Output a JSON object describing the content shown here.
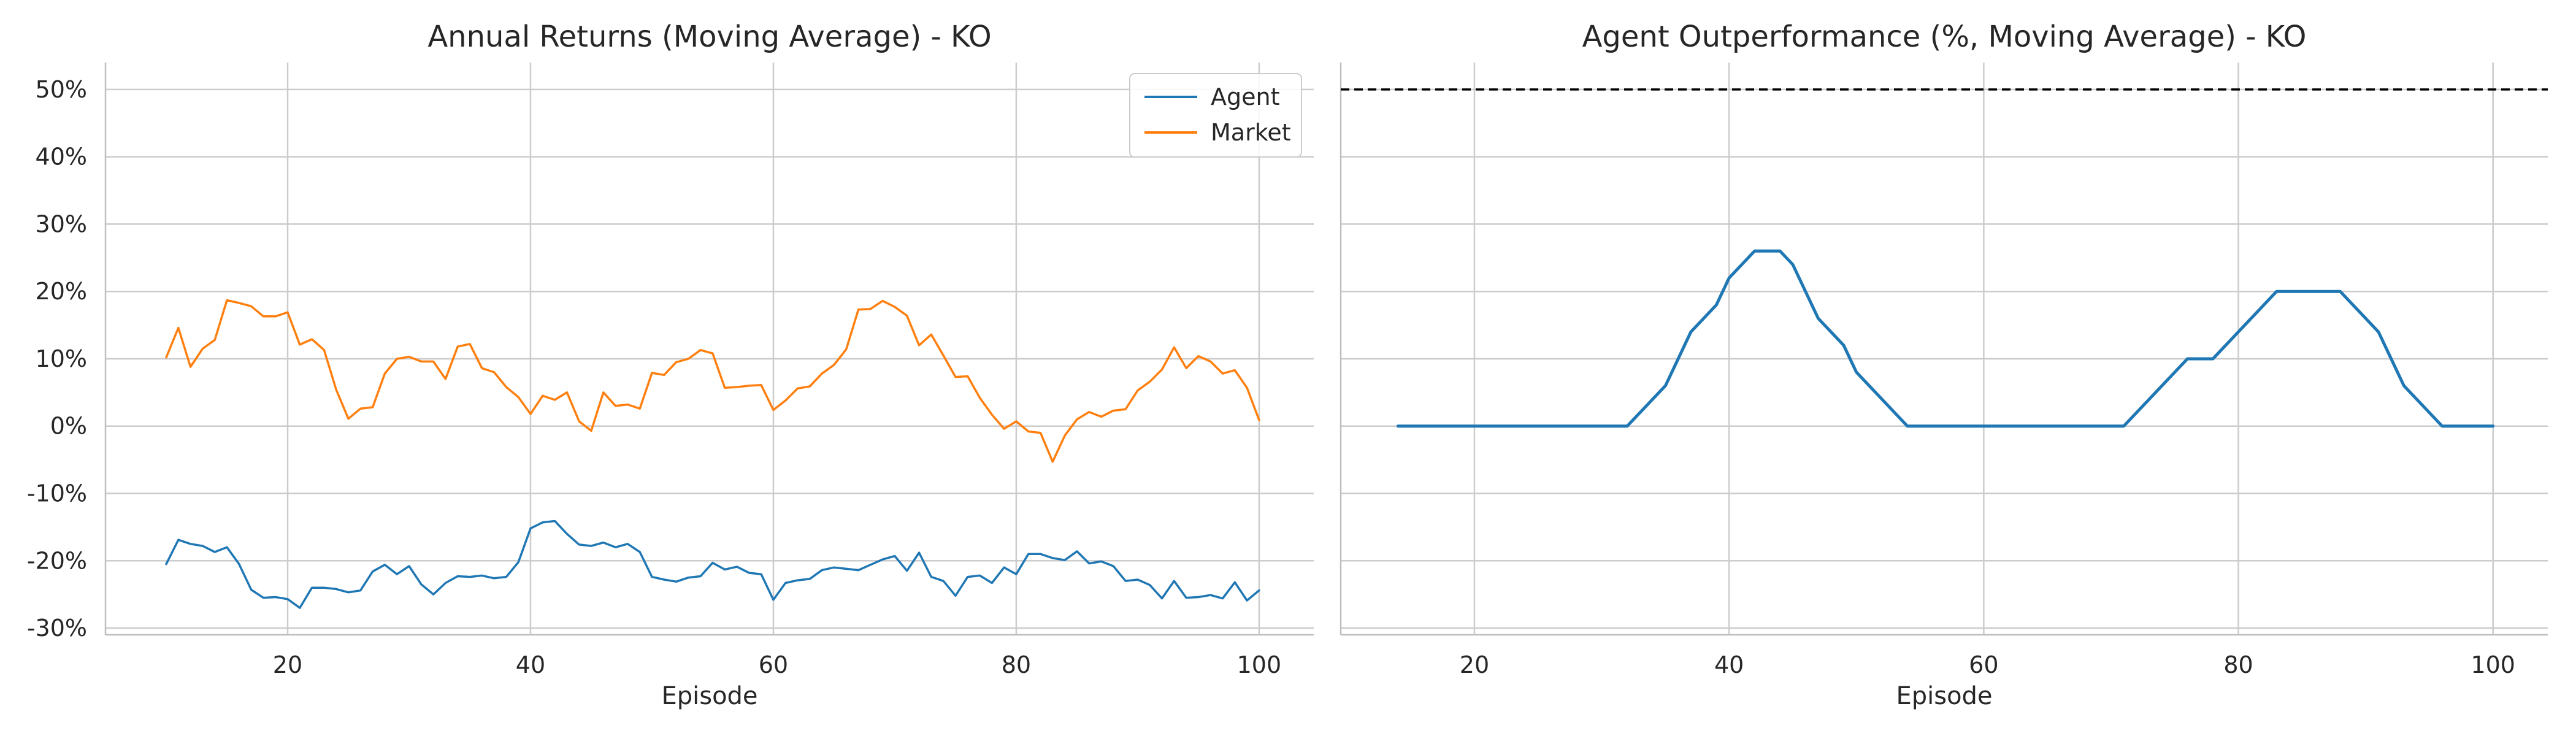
{
  "colors": {
    "agent": "#1f77b4",
    "market": "#ff7f0e",
    "reference": "#000000",
    "grid": "#cccccc"
  },
  "chart_data": [
    {
      "type": "line",
      "title": "Annual Returns (Moving Average) - KO",
      "xlabel": "Episode",
      "ylabel": "",
      "xlim": [
        5,
        104.5
      ],
      "ylim": [
        -31,
        54
      ],
      "xticks": [
        20,
        40,
        60,
        80,
        100
      ],
      "xtick_labels": [
        "20",
        "40",
        "60",
        "80",
        "100"
      ],
      "yticks": [
        -30,
        -20,
        -10,
        0,
        10,
        20,
        30,
        40,
        50
      ],
      "ytick_labels": [
        "-30%",
        "-20%",
        "-10%",
        "0%",
        "10%",
        "20%",
        "30%",
        "40%",
        "50%"
      ],
      "grid": true,
      "legend": "top-right",
      "x_start": 10,
      "series": [
        {
          "name": "Agent",
          "color": "#1f77b4",
          "values": [
            -20.5,
            -16.9,
            -17.5,
            -17.8,
            -18.7,
            -18.0,
            -20.5,
            -24.3,
            -25.5,
            -25.4,
            -25.7,
            -27.0,
            -24.0,
            -24.0,
            -24.2,
            -24.7,
            -24.4,
            -21.6,
            -20.6,
            -22.0,
            -20.8,
            -23.5,
            -25.0,
            -23.3,
            -22.3,
            -22.4,
            -22.2,
            -22.6,
            -22.4,
            -20.2,
            -15.2,
            -14.3,
            -14.1,
            -16.0,
            -17.6,
            -17.8,
            -17.3,
            -18.0,
            -17.5,
            -18.7,
            -22.4,
            -22.8,
            -23.1,
            -22.5,
            -22.3,
            -20.3,
            -21.3,
            -20.9,
            -21.8,
            -22.0,
            -25.8,
            -23.3,
            -22.9,
            -22.7,
            -21.4,
            -21.0,
            -21.2,
            -21.4,
            -20.6,
            -19.8,
            -19.3,
            -21.5,
            -18.8,
            -22.4,
            -23.0,
            -25.2,
            -22.4,
            -22.2,
            -23.3,
            -21.0,
            -22.0,
            -19.0,
            -19.0,
            -19.6,
            -19.9,
            -18.6,
            -20.4,
            -20.1,
            -20.8,
            -23.0,
            -22.8,
            -23.6,
            -25.6,
            -23.0,
            -25.5,
            -25.4,
            -25.1,
            -25.6,
            -23.2,
            -25.9,
            -24.4
          ]
        },
        {
          "name": "Market",
          "color": "#ff7f0e",
          "values": [
            10.2,
            14.6,
            8.8,
            11.5,
            12.8,
            18.7,
            18.3,
            17.8,
            16.3,
            16.3,
            16.9,
            12.1,
            12.9,
            11.3,
            5.4,
            1.1,
            2.6,
            2.8,
            7.8,
            10.0,
            10.3,
            9.6,
            9.6,
            7.0,
            11.8,
            12.2,
            8.6,
            8.0,
            5.8,
            4.3,
            1.8,
            4.5,
            3.9,
            5.0,
            0.7,
            -0.7,
            5.0,
            3.0,
            3.2,
            2.6,
            7.9,
            7.6,
            9.5,
            10.0,
            11.3,
            10.8,
            5.7,
            5.8,
            6.0,
            6.1,
            2.4,
            3.8,
            5.6,
            5.9,
            7.8,
            9.1,
            11.4,
            17.3,
            17.4,
            18.6,
            17.7,
            16.4,
            12.0,
            13.6,
            10.5,
            7.3,
            7.4,
            4.2,
            1.7,
            -0.4,
            0.7,
            -0.8,
            -1.0,
            -5.3,
            -1.4,
            1.0,
            2.1,
            1.4,
            2.3,
            2.5,
            5.3,
            6.6,
            8.4,
            11.7,
            8.6,
            10.4,
            9.6,
            7.8,
            8.3,
            5.7,
            0.9
          ]
        }
      ]
    },
    {
      "type": "line",
      "title": "Agent Outperformance (%, Moving Average) - KO",
      "xlabel": "Episode",
      "ylabel": "",
      "xlim": [
        9.5,
        104.3
      ],
      "ylim": [
        -31,
        54
      ],
      "xticks": [
        20,
        40,
        60,
        80,
        100
      ],
      "xtick_labels": [
        "20",
        "40",
        "60",
        "80",
        "100"
      ],
      "grid": true,
      "reference_line": 50,
      "series": [
        {
          "name": "",
          "color": "#1f77b4",
          "x": [
            14,
            32,
            34,
            35,
            37,
            39,
            40,
            42,
            44,
            45,
            47,
            49,
            50,
            54,
            71,
            76,
            78,
            83,
            88,
            91,
            93,
            96,
            100
          ],
          "values": [
            0,
            0,
            4,
            6,
            14,
            18,
            22,
            26,
            26,
            24,
            16,
            12,
            8,
            0,
            0,
            10,
            10,
            20,
            20,
            14,
            6,
            0,
            0
          ]
        }
      ]
    }
  ]
}
